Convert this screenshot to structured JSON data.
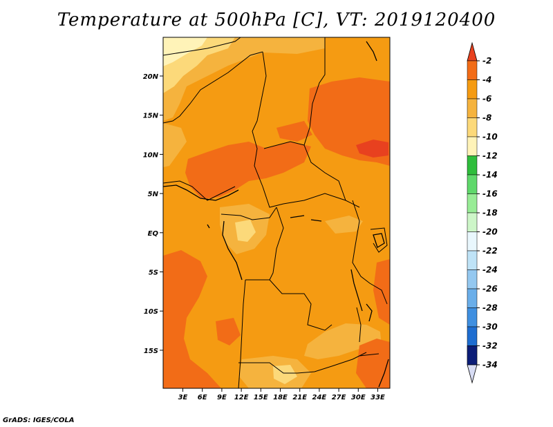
{
  "title": "Temperature at 500hPa [C], VT: 2019120400",
  "credit": "GrADS: IGES/COLA",
  "map": {
    "lat_ticks": [
      "20N",
      "15N",
      "10N",
      "5N",
      "EQ",
      "5S",
      "10S",
      "15S"
    ],
    "lon_ticks": [
      "3E",
      "6E",
      "9E",
      "12E",
      "15E",
      "18E",
      "21E",
      "24E",
      "27E",
      "30E",
      "33E"
    ]
  },
  "colorbar": {
    "labels": [
      "-2",
      "-4",
      "-6",
      "-8",
      "-10",
      "-12",
      "-14",
      "-16",
      "-18",
      "-20",
      "-22",
      "-24",
      "-26",
      "-28",
      "-30",
      "-32",
      "-34"
    ],
    "colors": {
      "above": "#e8411f",
      "bins": [
        "#f26c17",
        "#f59b12",
        "#f5b33e",
        "#fcd97a",
        "#fff3b8",
        "#2fbd3c",
        "#5fd86b",
        "#98ec96",
        "#cdf6c8",
        "#e9f7fd",
        "#bfe3f7",
        "#94c8f0",
        "#6aaee9",
        "#3f8fe0",
        "#1e6dd0",
        "#1048b0",
        "#0b1d77"
      ],
      "below": "#d7dcf4"
    }
  }
}
